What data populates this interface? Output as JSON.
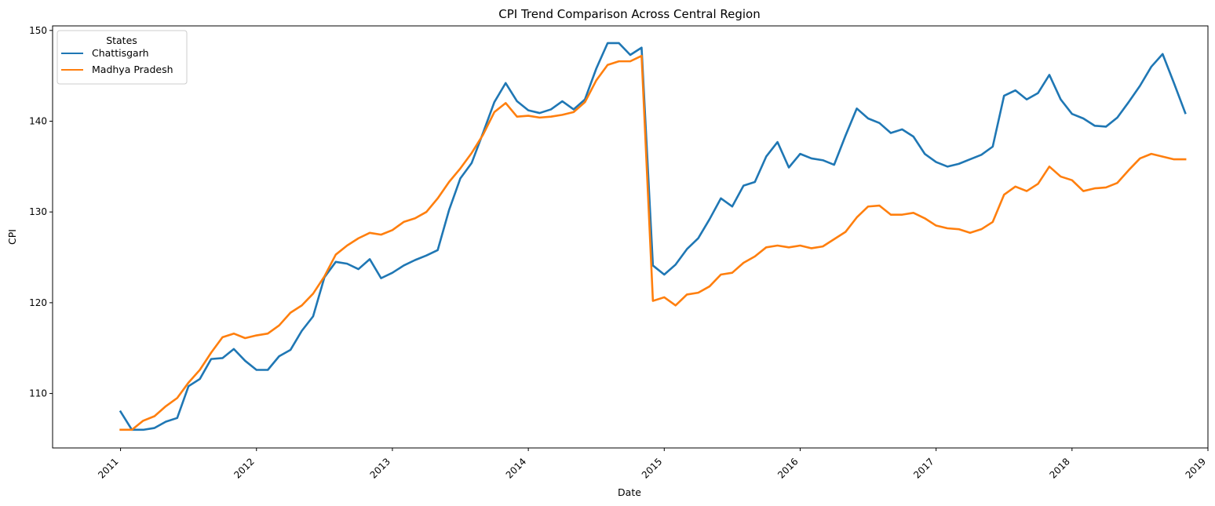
{
  "chart_data": {
    "type": "line",
    "title": "CPI Trend Comparison Across Central Region",
    "xlabel": "Date",
    "ylabel": "CPI",
    "x_start": "2011-01",
    "x_ticks": [
      "2011",
      "2012",
      "2013",
      "2014",
      "2015",
      "2016",
      "2017",
      "2018",
      "2019"
    ],
    "y_ticks": [
      110,
      120,
      130,
      140,
      150
    ],
    "xlim": [
      "2010-07",
      "2019-01"
    ],
    "ylim": [
      104,
      150.5
    ],
    "grid": false,
    "legend": {
      "title": "States",
      "placement": "top-left"
    },
    "series": [
      {
        "name": "Chattisgarh",
        "color": "#1f77b4",
        "values": [
          108.0,
          106.0,
          106.0,
          106.2,
          106.9,
          107.3,
          110.8,
          111.6,
          113.8,
          113.9,
          114.9,
          113.6,
          112.6,
          112.6,
          114.1,
          114.8,
          116.9,
          118.5,
          122.8,
          124.5,
          124.3,
          123.7,
          124.8,
          122.7,
          123.3,
          124.1,
          124.7,
          125.2,
          125.8,
          130.2,
          133.7,
          135.4,
          138.7,
          142.1,
          144.2,
          142.2,
          141.2,
          140.9,
          141.3,
          142.2,
          141.3,
          142.4,
          145.8,
          148.6,
          148.6,
          147.3,
          148.1,
          124.1,
          123.1,
          124.2,
          125.9,
          127.1,
          129.2,
          131.5,
          130.6,
          132.9,
          133.3,
          136.1,
          137.7,
          134.9,
          136.4,
          135.9,
          135.7,
          135.2,
          138.4,
          141.4,
          140.3,
          139.8,
          138.7,
          139.1,
          138.3,
          136.4,
          135.5,
          135.0,
          135.3,
          135.8,
          136.3,
          137.2,
          142.8,
          143.4,
          142.4,
          143.1,
          145.1,
          142.4,
          140.8,
          140.3,
          139.5,
          139.4,
          140.4,
          142.1,
          143.9,
          146.0,
          147.4,
          144.2,
          140.9
        ]
      },
      {
        "name": "Madhya Pradesh",
        "color": "#ff7f0e",
        "values": [
          106.0,
          106.0,
          107.0,
          107.5,
          108.6,
          109.5,
          111.2,
          112.6,
          114.5,
          116.2,
          116.6,
          116.1,
          116.4,
          116.6,
          117.5,
          118.9,
          119.7,
          121.0,
          122.9,
          125.3,
          126.3,
          127.1,
          127.7,
          127.5,
          128.0,
          128.9,
          129.3,
          130.0,
          131.5,
          133.3,
          134.8,
          136.5,
          138.5,
          141.0,
          142.0,
          140.5,
          140.6,
          140.4,
          140.5,
          140.7,
          141.0,
          142.1,
          144.5,
          146.2,
          146.6,
          146.6,
          147.2,
          120.2,
          120.6,
          119.7,
          120.9,
          121.1,
          121.8,
          123.1,
          123.3,
          124.4,
          125.1,
          126.1,
          126.3,
          126.1,
          126.3,
          126.0,
          126.2,
          127.0,
          127.8,
          129.4,
          130.6,
          130.7,
          129.7,
          129.7,
          129.9,
          129.3,
          128.5,
          128.2,
          128.1,
          127.7,
          128.1,
          128.9,
          131.9,
          132.8,
          132.3,
          133.1,
          135.0,
          133.9,
          133.5,
          132.3,
          132.6,
          132.7,
          133.2,
          134.6,
          135.9,
          136.4,
          136.1,
          135.8,
          135.8
        ]
      }
    ]
  }
}
